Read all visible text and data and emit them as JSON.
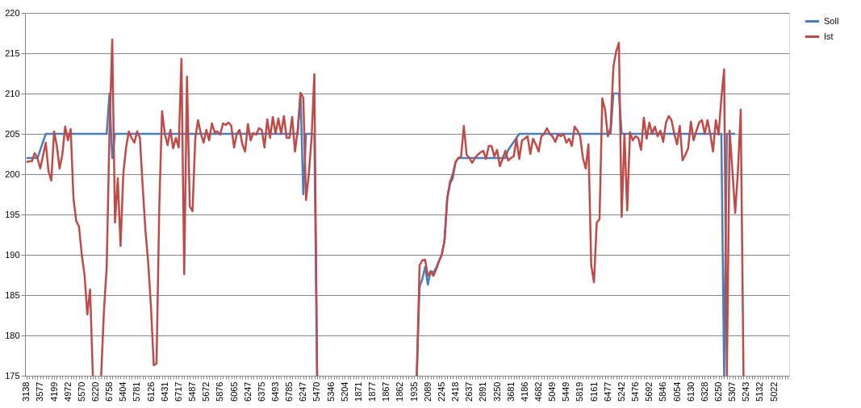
{
  "chart_data": {
    "type": "line",
    "categories": [
      "3138",
      null,
      null,
      null,
      null,
      "3577",
      null,
      null,
      null,
      null,
      "4199",
      null,
      null,
      null,
      null,
      "4972",
      null,
      null,
      null,
      null,
      "5570",
      null,
      null,
      null,
      null,
      "6220",
      null,
      null,
      null,
      null,
      "6758",
      null,
      null,
      null,
      null,
      "5404",
      null,
      null,
      null,
      null,
      "5781",
      null,
      null,
      null,
      null,
      "6126",
      null,
      null,
      null,
      null,
      "6431",
      null,
      null,
      null,
      null,
      "6717",
      null,
      null,
      null,
      null,
      "5487",
      null,
      null,
      null,
      null,
      "5672",
      null,
      null,
      null,
      null,
      "5876",
      null,
      null,
      null,
      null,
      "6065",
      null,
      null,
      null,
      null,
      "6247",
      null,
      null,
      null,
      null,
      "6375",
      null,
      null,
      null,
      null,
      "6493",
      null,
      null,
      null,
      null,
      "6785",
      null,
      null,
      null,
      null,
      "6247",
      null,
      null,
      null,
      null,
      "5470",
      null,
      null,
      null,
      null,
      "5346",
      null,
      null,
      null,
      null,
      "5204",
      null,
      null,
      null,
      null,
      "1871",
      null,
      null,
      null,
      null,
      "1877",
      null,
      null,
      null,
      null,
      "1867",
      null,
      null,
      null,
      null,
      "1862",
      null,
      null,
      null,
      null,
      "1935",
      null,
      null,
      null,
      null,
      "2089",
      null,
      null,
      null,
      null,
      "2245",
      null,
      null,
      null,
      null,
      "2418",
      null,
      null,
      null,
      null,
      "2637",
      null,
      null,
      null,
      null,
      "2891",
      null,
      null,
      null,
      null,
      "3250",
      null,
      null,
      null,
      null,
      "3681",
      null,
      null,
      null,
      null,
      "4186",
      null,
      null,
      null,
      null,
      "4682",
      null,
      null,
      null,
      null,
      "5049",
      null,
      null,
      null,
      null,
      "5449",
      null,
      null,
      null,
      null,
      "5819",
      null,
      null,
      null,
      null,
      "6161",
      null,
      null,
      null,
      null,
      "6477",
      null,
      null,
      null,
      null,
      "5242",
      null,
      null,
      null,
      null,
      "5476",
      null,
      null,
      null,
      null,
      "5692",
      null,
      null,
      null,
      null,
      "5846",
      null,
      null,
      null,
      null,
      "6054",
      null,
      null,
      null,
      null,
      "6130",
      null,
      null,
      null,
      null,
      "6328",
      null,
      null,
      null,
      null,
      "6250",
      null,
      null,
      null,
      null,
      "5307",
      null,
      null,
      null,
      null,
      "5243",
      null,
      null,
      null,
      null,
      "5132",
      null,
      null,
      null,
      null,
      "5022",
      null,
      null,
      null,
      null,
      null
    ],
    "series": [
      {
        "name": "Soll",
        "color": "#4a7ebb",
        "values": [
          202,
          202,
          202,
          202,
          202,
          203,
          204,
          205,
          205,
          205,
          205,
          205,
          205,
          205,
          205,
          205,
          205,
          205,
          205,
          205,
          205,
          205,
          205,
          205,
          205,
          205,
          205,
          205,
          205,
          205,
          210,
          202,
          205,
          205,
          205,
          205,
          205,
          205,
          205,
          205,
          205,
          205,
          205,
          205,
          205,
          205,
          205,
          205,
          205,
          205,
          205,
          205,
          205,
          205,
          205,
          205,
          205,
          205,
          205,
          205,
          205,
          205,
          205,
          205,
          205,
          205,
          205,
          205,
          205,
          205,
          205,
          205,
          205,
          205,
          205,
          205,
          205,
          205,
          205,
          205,
          205,
          205,
          205,
          205,
          205,
          205,
          205,
          205,
          205,
          205,
          205,
          205,
          205,
          205,
          205,
          205,
          205,
          205,
          205,
          210,
          197.5,
          205,
          205,
          205,
          205,
          175,
          null,
          null,
          null,
          null,
          null,
          null,
          null,
          null,
          null,
          null,
          null,
          null,
          null,
          null,
          null,
          null,
          null,
          null,
          null,
          null,
          null,
          null,
          null,
          null,
          null,
          null,
          null,
          null,
          null,
          null,
          null,
          null,
          null,
          null,
          null,
          175,
          186,
          187,
          188.5,
          186.3,
          188,
          187.8,
          188.4,
          189.2,
          190,
          191.7,
          197,
          198.8,
          199.5,
          201.5,
          202,
          202,
          202,
          202,
          202,
          202,
          202,
          202,
          202,
          202,
          202,
          202,
          202,
          202,
          202,
          202,
          202,
          202,
          203,
          203.5,
          204,
          204.5,
          205,
          205,
          205,
          205,
          205,
          205,
          205,
          205,
          205,
          205,
          205,
          205,
          205,
          205,
          205,
          205,
          205,
          205,
          205,
          205,
          205,
          205,
          205,
          205,
          205,
          205,
          205,
          205,
          205,
          205,
          205,
          205,
          205,
          205,
          210,
          210,
          210,
          205,
          205,
          205,
          205,
          205,
          205,
          205,
          205,
          205,
          205,
          205,
          205,
          205,
          205,
          205,
          205,
          205,
          205,
          205,
          205,
          205,
          205,
          205,
          205,
          205,
          205,
          205,
          205,
          205,
          205,
          205,
          205,
          205,
          205,
          205,
          205,
          205,
          175,
          205,
          205,
          205,
          205,
          null,
          null,
          null,
          null,
          null,
          null,
          null,
          null,
          null,
          null,
          null,
          null,
          null,
          null,
          null,
          null,
          null,
          null,
          null
        ]
      },
      {
        "name": "Ist",
        "color": "#be4b48",
        "values": [
          201.5,
          201.6,
          201.6,
          202.6,
          202,
          200.7,
          202.3,
          203.9,
          200.3,
          199.2,
          205.3,
          203.5,
          200.7,
          202.5,
          205.9,
          204.2,
          205.6,
          197,
          194.2,
          193.5,
          190,
          187.5,
          182.6,
          185.7,
          175,
          null,
          null,
          175,
          183,
          188.5,
          205,
          216.7,
          194,
          199.5,
          191.1,
          200,
          203.3,
          205.3,
          204.5,
          203.9,
          205.3,
          204.5,
          198.5,
          193,
          189,
          183.5,
          176.3,
          176.5,
          196,
          207.8,
          205,
          203.6,
          205.5,
          203.2,
          204.5,
          203.3,
          214.3,
          187.6,
          212.1,
          196,
          195.4,
          204.5,
          206.7,
          205,
          203.9,
          205.5,
          204.2,
          206.3,
          205.2,
          205.3,
          204.9,
          206.3,
          206.1,
          206.4,
          206,
          203.3,
          205,
          205.5,
          203.7,
          202.8,
          206.2,
          204.2,
          205.1,
          204.9,
          205.7,
          205.5,
          203.3,
          206.8,
          204.5,
          207.1,
          205,
          206.9,
          205,
          207.2,
          204.5,
          204.5,
          207.1,
          202.8,
          205.5,
          210.1,
          209.5,
          196.8,
          200,
          204.5,
          212.4,
          175,
          null,
          null,
          null,
          null,
          null,
          null,
          null,
          null,
          null,
          null,
          null,
          null,
          null,
          null,
          null,
          null,
          null,
          null,
          null,
          null,
          null,
          null,
          null,
          null,
          null,
          null,
          null,
          null,
          null,
          null,
          null,
          null,
          null,
          null,
          null,
          175,
          188.7,
          189.3,
          189.4,
          187.4,
          187.9,
          187.4,
          188.2,
          189.2,
          190,
          191.7,
          197,
          199,
          200,
          201.5,
          202,
          202.2,
          206,
          202.4,
          202,
          201.4,
          202,
          202.4,
          202.7,
          202.9,
          201.9,
          203.5,
          203.5,
          202.2,
          203,
          201,
          201.9,
          202.9,
          201.7,
          202,
          202.2,
          204.4,
          201.9,
          204.2,
          204.4,
          204.7,
          202.5,
          204.4,
          203.7,
          202.8,
          204.7,
          205,
          205.7,
          205,
          204.7,
          204,
          204.9,
          204.7,
          205,
          203.9,
          204.4,
          203.5,
          205.9,
          205.4,
          204.7,
          202,
          200.7,
          203.7,
          188.7,
          186.6,
          194,
          194.4,
          209.4,
          208,
          204.7,
          205.7,
          213.3,
          215.2,
          216.3,
          194.7,
          205,
          195.5,
          205.2,
          204.2,
          204.7,
          204.5,
          203,
          207,
          204.4,
          206.4,
          205,
          205.9,
          204.7,
          205.4,
          204,
          206.4,
          207.2,
          206.7,
          205,
          203.7,
          206,
          201.7,
          202.4,
          203.2,
          206.5,
          204.2,
          205.4,
          206.4,
          206.7,
          205,
          206.7,
          205,
          202.8,
          206.7,
          204.9,
          209.4,
          213,
          175,
          205.4,
          200.4,
          195.2,
          200.4,
          208,
          175,
          null,
          null,
          null,
          null,
          null,
          null,
          null,
          null,
          null,
          null,
          null,
          null,
          null,
          null,
          null,
          null
        ]
      }
    ],
    "ylim": [
      175,
      220
    ],
    "yticks": [
      175,
      180,
      185,
      190,
      195,
      200,
      205,
      210,
      215,
      220
    ],
    "grid": "y",
    "legend": "right",
    "marker": "none",
    "line_style": "solid"
  }
}
